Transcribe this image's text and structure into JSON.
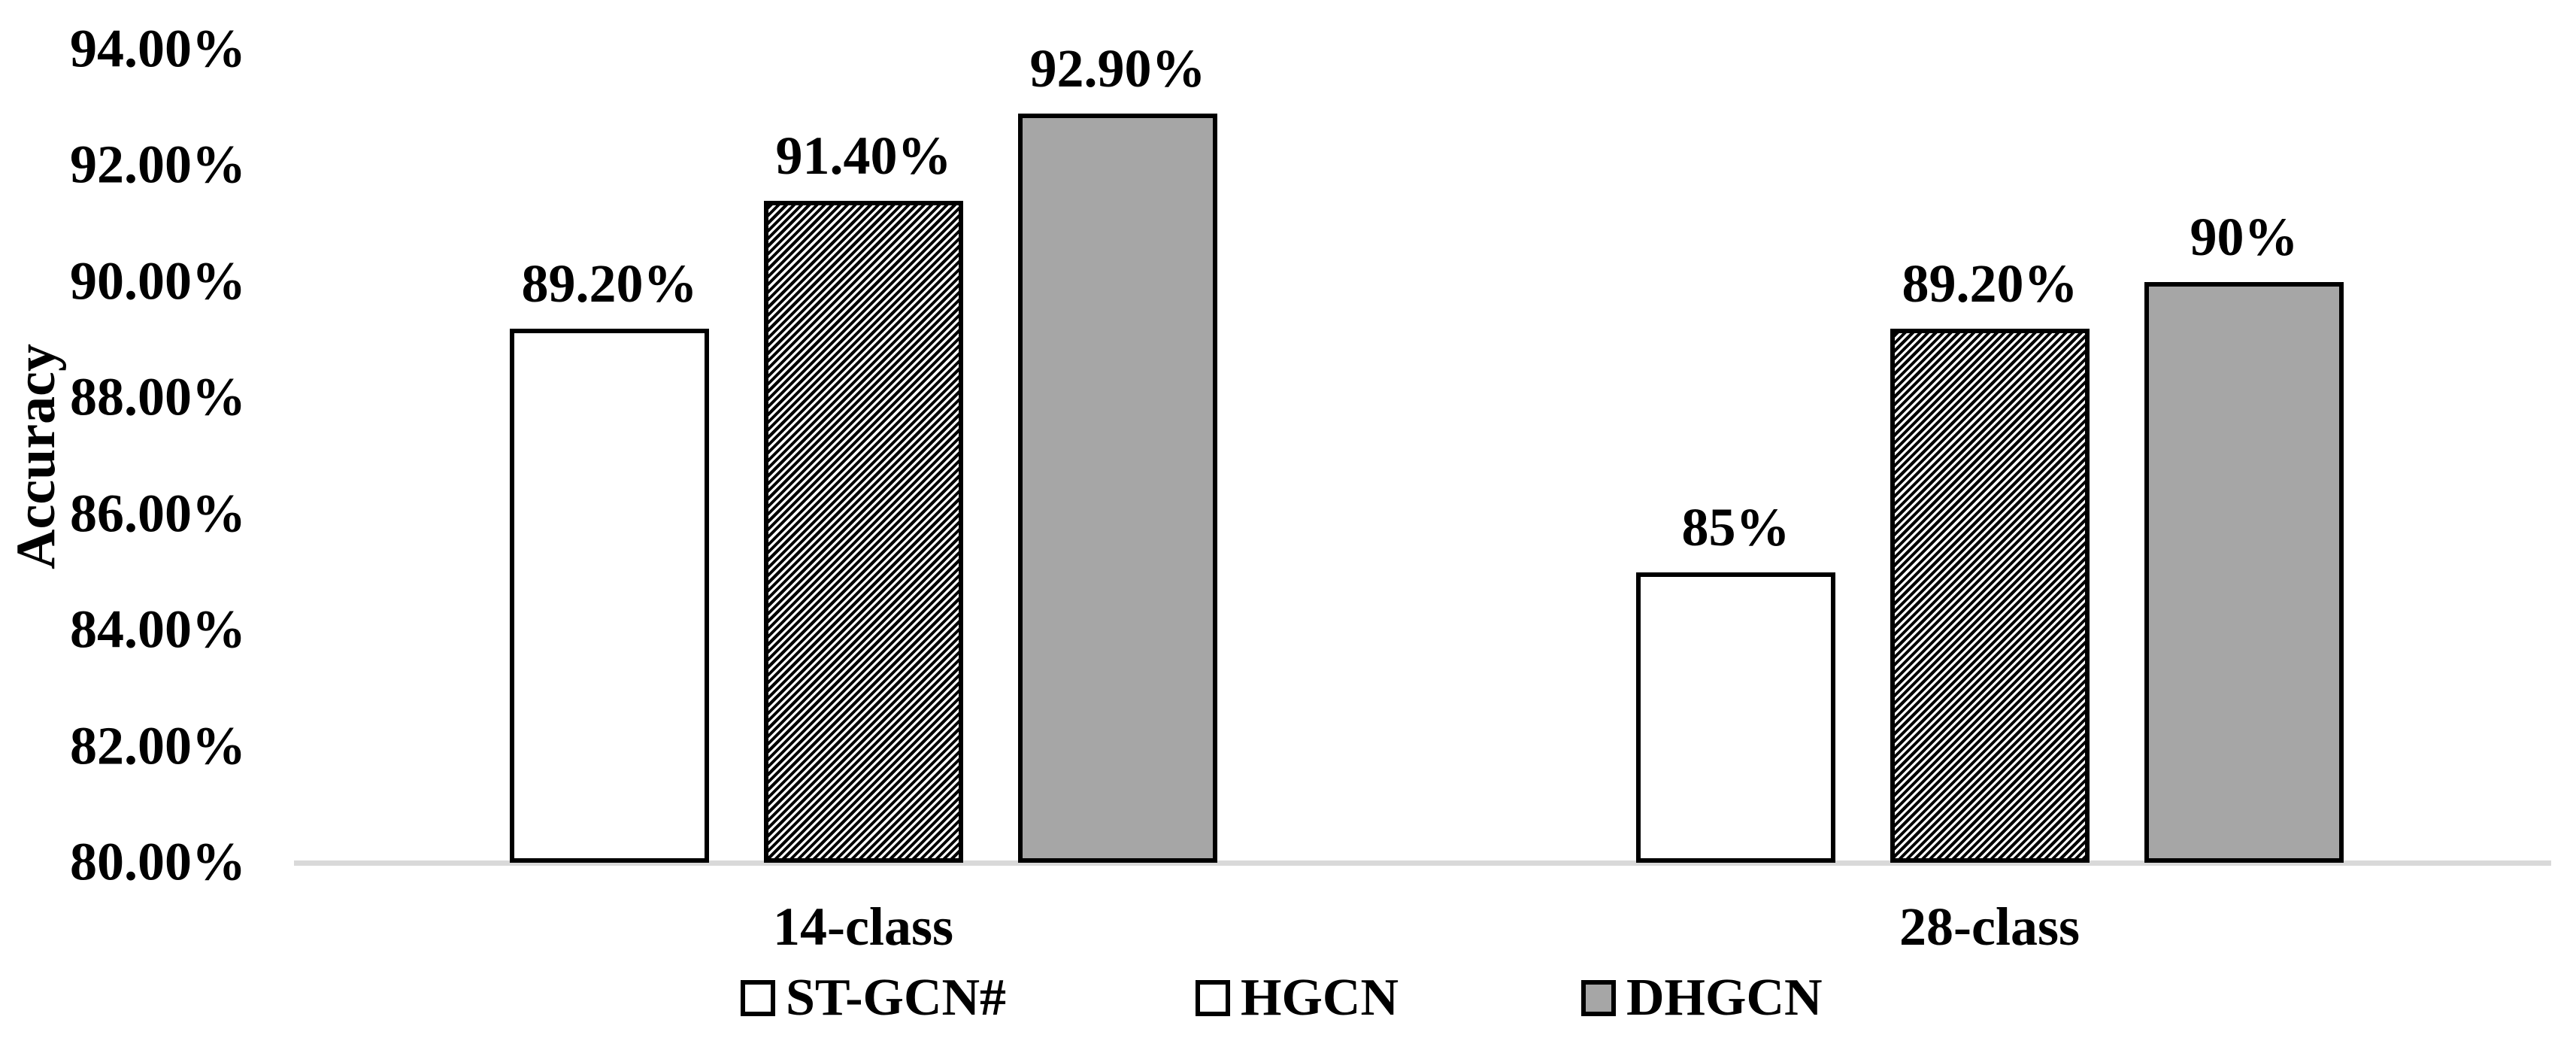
{
  "colors": {
    "bar_gray": "#a6a6a6",
    "axis_line": "#d9d9d9",
    "text": "#000000",
    "bar_border": "#000000"
  },
  "chart_data": {
    "type": "bar",
    "title": "",
    "xlabel": "",
    "ylabel": "Accuracy",
    "ylim": [
      80,
      94
    ],
    "ytick_step": 2,
    "ytick_labels_top_to_bottom": [
      "94.00%",
      "92.00%",
      "90.00%",
      "88.00%",
      "86.00%",
      "84.00%",
      "82.00%",
      "80.00%"
    ],
    "ytick_values_top_to_bottom": [
      94,
      92,
      90,
      88,
      86,
      84,
      82,
      80
    ],
    "grid": false,
    "legend_position": "bottom",
    "categories": [
      "14-class",
      "28-class"
    ],
    "series": [
      {
        "name": "ST-GCN#",
        "values": [
          89.2,
          85
        ],
        "value_labels": [
          "89.20%",
          "85%"
        ],
        "fill": "#ffffff",
        "pattern": "none"
      },
      {
        "name": "HGCN",
        "values": [
          91.4,
          89.2
        ],
        "value_labels": [
          "91.40%",
          "89.20%"
        ],
        "fill": "#ffffff",
        "pattern": "diagonal-hatch"
      },
      {
        "name": "DHGCN",
        "values": [
          92.9,
          90
        ],
        "value_labels": [
          "92.90%",
          "90%"
        ],
        "fill": "#a6a6a6",
        "pattern": "none"
      }
    ]
  }
}
